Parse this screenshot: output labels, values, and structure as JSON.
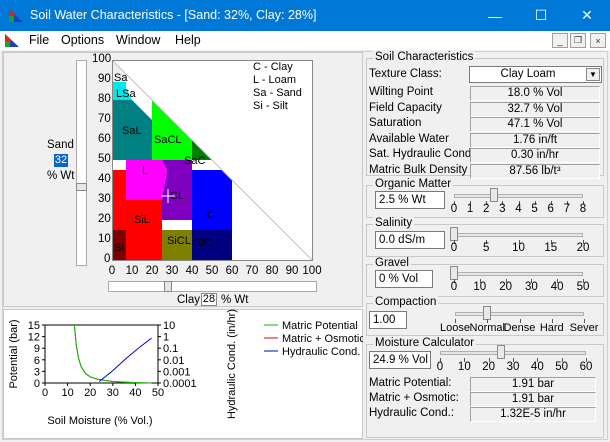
{
  "window": {
    "title": "Soil Water Characteristics  - [Sand: 32%, Clay: 28%]",
    "minimize": "—",
    "maximize": "☐",
    "close": "✕"
  },
  "menu": [
    "File",
    "Options",
    "Window",
    "Help"
  ],
  "mdi_controls": [
    "_",
    "❐",
    "×"
  ],
  "triangle": {
    "legend": [
      "C - Clay",
      "L  - Loam",
      "Sa - Sand",
      "Si - Silt"
    ],
    "sand_axis_ticks": [
      "100",
      "90",
      "80",
      "70",
      "60",
      "50",
      "40",
      "30",
      "20",
      "10",
      "0"
    ],
    "clay_axis_ticks": [
      "0",
      "10",
      "20",
      "30",
      "40",
      "50",
      "60",
      "70",
      "80",
      "90",
      "100"
    ],
    "sand_label": "Sand",
    "sand_value": "32",
    "sand_unit": "% Wt",
    "clay_label": "Clay",
    "clay_value": "28",
    "clay_unit": "% Wt",
    "region_labels": [
      "Sa",
      "LSa",
      "SaL",
      "SaCL",
      "SaC",
      "L",
      "CL",
      "SiL",
      "C",
      "SiCL",
      "SiC",
      "Si"
    ],
    "sand_pct": 32,
    "clay_pct": 28
  },
  "chart_data": {
    "type": "line",
    "xlabel": "Soil Moisture (% Vol.)",
    "ylabel_left": "Potential (bar)",
    "ylabel_right": "Hydraulic Cond. (in/hr)",
    "x_ticks": [
      "0",
      "10",
      "20",
      "30",
      "40",
      "50"
    ],
    "y_left_ticks": [
      "15",
      "12",
      "9",
      "6",
      "3",
      "0"
    ],
    "y_right_ticks": [
      "10",
      "1",
      "0.1",
      "0.01",
      "0.001",
      "0.0001"
    ],
    "xlim": [
      0,
      50
    ],
    "ylim_left": [
      0,
      15
    ],
    "series": [
      {
        "name": "Matric Potential",
        "color": "#00c000",
        "x": [
          13,
          13.8,
          14.8,
          16,
          18,
          20,
          23,
          26,
          30,
          36,
          42,
          47.1
        ],
        "y": [
          15,
          10,
          6.5,
          4.2,
          2.4,
          1.6,
          1.0,
          0.7,
          0.4,
          0.2,
          0.08,
          0
        ]
      },
      {
        "name": "Matric + Osmotic",
        "color": "#e00000",
        "x": [
          13,
          13.8,
          14.8,
          16,
          18,
          20,
          23,
          26,
          30,
          36,
          42,
          47.1
        ],
        "y": [
          15,
          10,
          6.5,
          4.2,
          2.4,
          1.6,
          1.0,
          0.7,
          0.4,
          0.2,
          0.08,
          0
        ]
      },
      {
        "name": "Hydraulic Cond.",
        "color": "#0000d0",
        "x": [
          24,
          30,
          36,
          42,
          47.1
        ],
        "y": [
          0.4,
          3.2,
          6.4,
          9.3,
          11.6
        ]
      }
    ]
  },
  "soil": {
    "title": "Soil Characteristics",
    "texture_label": "Texture Class:",
    "texture_value": "Clay Loam",
    "rows": [
      {
        "label": "Wilting Point",
        "value": "18.0 % Vol"
      },
      {
        "label": "Field Capacity",
        "value": "32.7 % Vol"
      },
      {
        "label": "Saturation",
        "value": "47.1 % Vol"
      },
      {
        "label": "Available Water",
        "value": "1.76 in/ft"
      },
      {
        "label": "Sat. Hydraulic Cond.",
        "value": "0.30 in/hr"
      },
      {
        "label": "Matric Bulk Density",
        "value": "87.56 lb/t³"
      }
    ]
  },
  "organic": {
    "title": "Organic Matter",
    "value": "2.5 % Wt",
    "ticks": [
      "0",
      "1",
      "2",
      "3",
      "4",
      "5",
      "6",
      "7",
      "8"
    ],
    "level": 2.5,
    "max": 8
  },
  "salinity": {
    "title": "Salinity",
    "value": "0.0 dS/m",
    "ticks": [
      "0",
      "5",
      "10",
      "15",
      "20"
    ],
    "level": 0,
    "max": 20
  },
  "gravel": {
    "title": "Gravel",
    "value": "0 % Vol",
    "ticks": [
      "0",
      "10",
      "20",
      "30",
      "40",
      "50"
    ],
    "level": 0,
    "max": 50
  },
  "compaction": {
    "title": "Compaction",
    "value": "1.00",
    "ticks": [
      "Loose",
      "Normal",
      "Dense",
      "Hard",
      "Sever"
    ],
    "level": 1,
    "max": 4
  },
  "moisture": {
    "title": "Moisture Calculator",
    "value": "24.9 % Vol",
    "ticks": [
      "0",
      "10",
      "20",
      "30",
      "40",
      "50",
      "60"
    ],
    "level": 24.9,
    "max": 60,
    "rows": [
      {
        "label": "Matric Potential:",
        "value": "1.91 bar"
      },
      {
        "label": "Matric + Osmotic:",
        "value": "1.91 bar"
      },
      {
        "label": "Hydraulic Cond.:",
        "value": "1.32E-5 in/hr"
      }
    ]
  }
}
